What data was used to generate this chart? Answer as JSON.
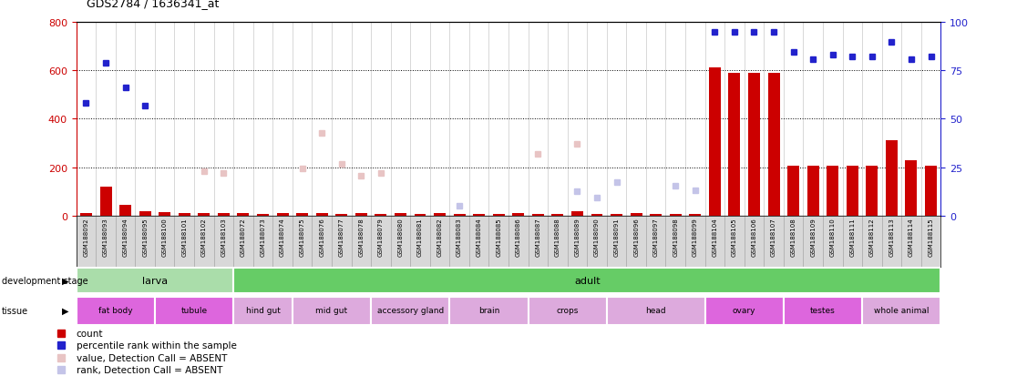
{
  "title": "GDS2784 / 1636341_at",
  "samples": [
    "GSM188092",
    "GSM188093",
    "GSM188094",
    "GSM188095",
    "GSM188100",
    "GSM188101",
    "GSM188102",
    "GSM188103",
    "GSM188072",
    "GSM188073",
    "GSM188074",
    "GSM188075",
    "GSM188076",
    "GSM188077",
    "GSM188078",
    "GSM188079",
    "GSM188080",
    "GSM188081",
    "GSM188082",
    "GSM188083",
    "GSM188084",
    "GSM188085",
    "GSM188086",
    "GSM188087",
    "GSM188088",
    "GSM188089",
    "GSM188090",
    "GSM188091",
    "GSM188096",
    "GSM188097",
    "GSM188098",
    "GSM188099",
    "GSM188104",
    "GSM188105",
    "GSM188106",
    "GSM188107",
    "GSM188108",
    "GSM188109",
    "GSM188110",
    "GSM188111",
    "GSM188112",
    "GSM188113",
    "GSM188114",
    "GSM188115"
  ],
  "count_values": [
    10,
    120,
    45,
    20,
    15,
    10,
    12,
    10,
    10,
    8,
    10,
    12,
    10,
    8,
    10,
    8,
    10,
    8,
    10,
    8,
    8,
    8,
    10,
    8,
    8,
    20,
    8,
    8,
    10,
    8,
    8,
    8,
    610,
    590,
    590,
    590,
    205,
    205,
    205,
    205,
    205,
    310,
    230,
    205
  ],
  "percentile_values": [
    465,
    630,
    530,
    455,
    null,
    null,
    null,
    null,
    null,
    null,
    null,
    null,
    null,
    null,
    null,
    null,
    null,
    null,
    null,
    null,
    null,
    null,
    null,
    null,
    null,
    null,
    null,
    null,
    null,
    null,
    null,
    null,
    760,
    760,
    760,
    760,
    675,
    645,
    665,
    655,
    655,
    715,
    645,
    655
  ],
  "absent_value_values": [
    null,
    null,
    null,
    null,
    null,
    null,
    185,
    175,
    null,
    null,
    null,
    195,
    340,
    215,
    165,
    175,
    null,
    null,
    null,
    null,
    null,
    null,
    null,
    255,
    null,
    295,
    null,
    null,
    null,
    null,
    null,
    null,
    null,
    null,
    null,
    null,
    null,
    null,
    null,
    null,
    null,
    null,
    null,
    null
  ],
  "absent_rank_values": [
    null,
    null,
    null,
    null,
    null,
    null,
    null,
    null,
    null,
    null,
    null,
    null,
    null,
    null,
    null,
    null,
    null,
    null,
    null,
    40,
    null,
    null,
    null,
    null,
    null,
    100,
    75,
    140,
    null,
    null,
    125,
    105,
    null,
    null,
    null,
    null,
    null,
    null,
    null,
    null,
    null,
    null,
    null,
    null
  ],
  "dev_stage_groups": [
    {
      "label": "larva",
      "start": 0,
      "end": 7
    },
    {
      "label": "adult",
      "start": 8,
      "end": 43
    }
  ],
  "tissue_groups": [
    {
      "label": "fat body",
      "start": 0,
      "end": 3,
      "dark": true
    },
    {
      "label": "tubule",
      "start": 4,
      "end": 7,
      "dark": true
    },
    {
      "label": "hind gut",
      "start": 8,
      "end": 10,
      "dark": false
    },
    {
      "label": "mid gut",
      "start": 11,
      "end": 14,
      "dark": false
    },
    {
      "label": "accessory gland",
      "start": 15,
      "end": 18,
      "dark": false
    },
    {
      "label": "brain",
      "start": 19,
      "end": 22,
      "dark": false
    },
    {
      "label": "crops",
      "start": 23,
      "end": 26,
      "dark": false
    },
    {
      "label": "head",
      "start": 27,
      "end": 31,
      "dark": false
    },
    {
      "label": "ovary",
      "start": 32,
      "end": 35,
      "dark": true
    },
    {
      "label": "testes",
      "start": 36,
      "end": 39,
      "dark": true
    },
    {
      "label": "whole animal",
      "start": 40,
      "end": 43,
      "dark": false
    }
  ],
  "ylim_left": [
    0,
    800
  ],
  "ylim_right": [
    0,
    100
  ],
  "yticks_left": [
    0,
    200,
    400,
    600,
    800
  ],
  "yticks_right": [
    0,
    25,
    50,
    75,
    100
  ],
  "bar_color": "#cc0000",
  "percentile_color": "#2222cc",
  "absent_value_color": "#e8c4c4",
  "absent_rank_color": "#c4c4e8",
  "dev_larva_color": "#aaddaa",
  "dev_adult_color": "#66cc66",
  "tissue_dark_color": "#dd66dd",
  "tissue_light_color": "#ddaadd",
  "xlabel_bg_color": "#d8d8d8",
  "plot_bg": "#ffffff",
  "grid_color": "#000000",
  "sep_color": "#bbbbbb"
}
